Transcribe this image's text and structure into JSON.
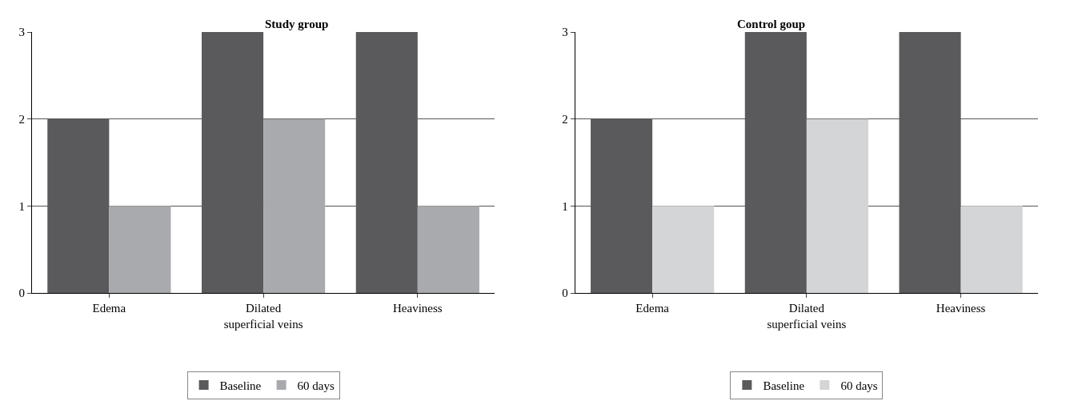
{
  "chart_data": [
    {
      "type": "bar",
      "title": "Study group",
      "categories": [
        "Edema",
        "Dilated\nsuperficial veins",
        "Heaviness"
      ],
      "ylim": [
        0,
        3
      ],
      "yticks": [
        0,
        1,
        2,
        3
      ],
      "grid": "y",
      "legend": "bottom",
      "series": [
        {
          "name": "Baseline",
          "color": "#5a5a5c",
          "values": [
            2,
            3,
            3
          ]
        },
        {
          "name": "60 days",
          "color": "#a9aaad",
          "values": [
            1,
            2,
            1
          ]
        }
      ]
    },
    {
      "type": "bar",
      "title": "Control goup",
      "categories": [
        "Edema",
        "Dilated\nsuperficial veins",
        "Heaviness"
      ],
      "ylim": [
        0,
        3
      ],
      "yticks": [
        0,
        1,
        2,
        3
      ],
      "grid": "y",
      "legend": "bottom",
      "series": [
        {
          "name": "Baseline",
          "color": "#5a5a5c",
          "values": [
            2,
            3,
            3
          ]
        },
        {
          "name": "60 days",
          "color": "#d4d5d7",
          "values": [
            1,
            2,
            1
          ]
        }
      ]
    }
  ]
}
